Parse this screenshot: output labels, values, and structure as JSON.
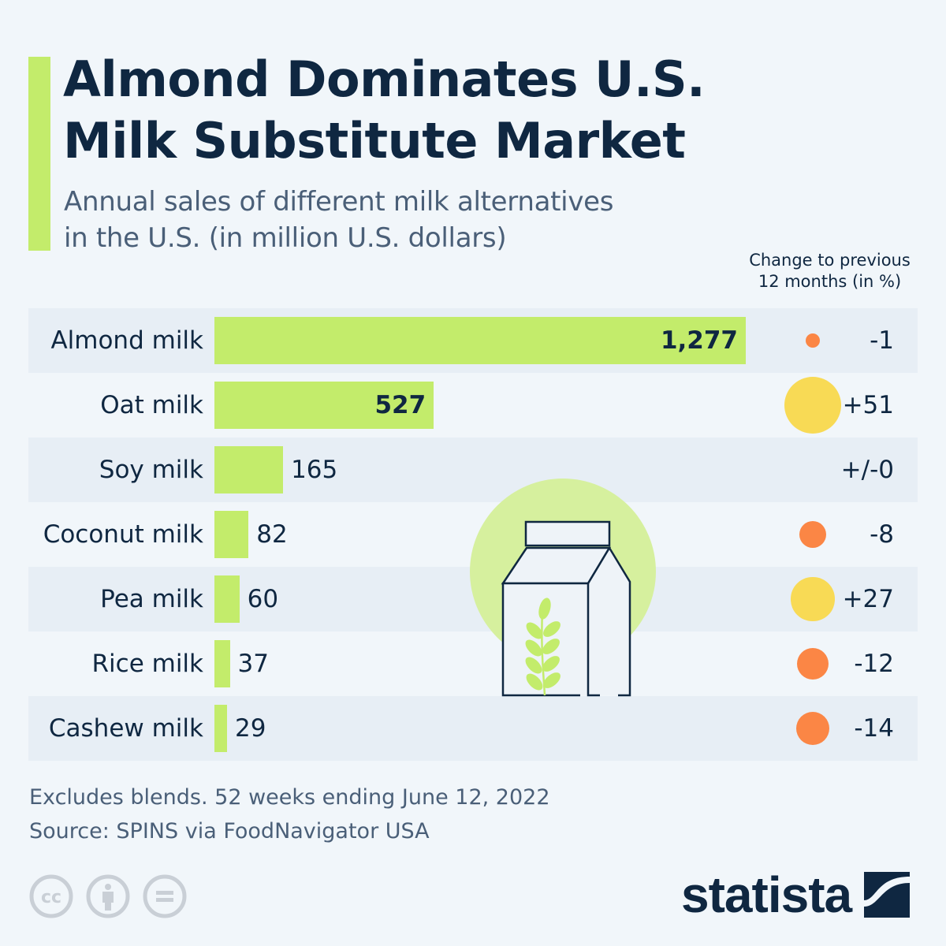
{
  "header": {
    "title_line1": "Almond Dominates U.S.",
    "title_line2": "Milk Substitute Market",
    "subtitle_line1": "Annual sales of different milk alternatives",
    "subtitle_line2": "in the U.S. (in million U.S. dollars)",
    "accent_color": "#c3ec6b"
  },
  "change_header": {
    "line1": "Change to previous",
    "line2": "12 months (in %)"
  },
  "chart_data": {
    "type": "bar",
    "orientation": "horizontal",
    "title": "Almond Dominates U.S. Milk Substitute Market",
    "subtitle": "Annual sales of different milk alternatives in the U.S. (in million U.S. dollars)",
    "xlabel": "",
    "ylabel": "",
    "unit": "million U.S. dollars",
    "xlim": [
      0,
      1277
    ],
    "grid": false,
    "bar_color": "#c3ec6b",
    "categories": [
      "Almond milk",
      "Oat milk",
      "Soy milk",
      "Coconut milk",
      "Pea milk",
      "Rice milk",
      "Cashew milk"
    ],
    "values": [
      1277,
      527,
      165,
      82,
      60,
      37,
      29
    ],
    "value_labels": [
      "1,277",
      "527",
      "165",
      "82",
      "60",
      "37",
      "29"
    ],
    "change_series": {
      "name": "Change to previous 12 months (in %)",
      "values": [
        -1,
        51,
        0,
        -8,
        27,
        -12,
        -14
      ],
      "labels": [
        "-1",
        "+51",
        "+/-0",
        "-8",
        "+27",
        "-12",
        "-14"
      ],
      "positive_color": "#f8da55",
      "negative_color": "#fb8645"
    }
  },
  "footnote": {
    "note": "Excludes blends. 52 weeks ending June 12, 2022",
    "source": "Source: SPINS via FoodNavigator USA"
  },
  "license_icons": [
    "creative-commons-icon",
    "attribution-icon",
    "no-derivatives-icon"
  ],
  "brand": {
    "name": "statista",
    "logo_icon": "statista-logo-icon"
  },
  "illustration": {
    "icon": "milk-carton-with-wheat-icon"
  }
}
